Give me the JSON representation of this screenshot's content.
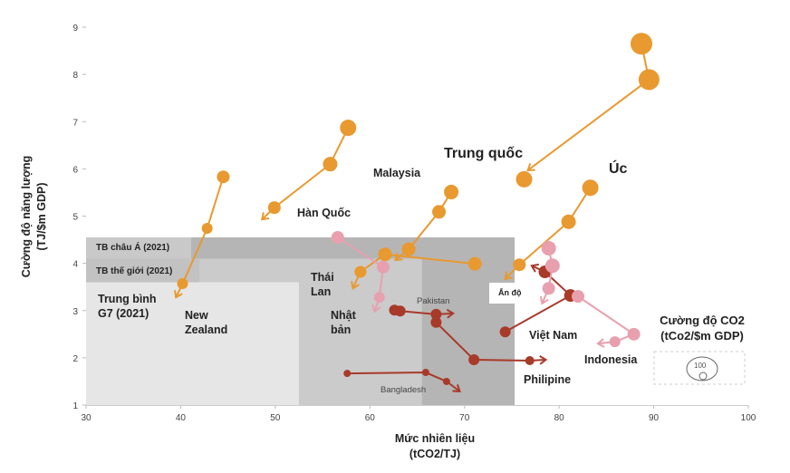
{
  "chart_data": {
    "type": "scatter",
    "title": "",
    "xlabel": "Mức nhiên liệu (tCO2/TJ)",
    "xlabel_lines": [
      "Mức nhiên liệu",
      "(tCO2/TJ)"
    ],
    "ylabel": "Cường độ năng lượng (TJ/$m GDP)",
    "ylabel_lines": [
      "Cường độ năng lượng",
      "(TJ/$m GDP)"
    ],
    "xlim": [
      30,
      100
    ],
    "ylim": [
      1,
      9
    ],
    "xticks": [
      30,
      40,
      50,
      60,
      70,
      80,
      90,
      100
    ],
    "yticks": [
      1,
      2,
      3,
      4,
      5,
      6,
      7,
      8,
      9
    ],
    "grid": false,
    "regions": [
      {
        "name": "TB châu Á (2021)",
        "x": [
          30,
          75.3
        ],
        "y": [
          1,
          4.55
        ],
        "color": "#b5b5b5"
      },
      {
        "name": "TB thế giới (2021)",
        "x": [
          30,
          65.5
        ],
        "y": [
          1,
          4.1
        ],
        "color": "#cbcbcb"
      },
      {
        "name": "Trung bình G7 (2021)",
        "x": [
          30,
          52.5
        ],
        "y": [
          1,
          3.6
        ],
        "color": "#e6e6e6"
      }
    ],
    "region_labels": [
      "TB châu Á (2021)",
      "TB thế giới (2021)",
      "Trung bình G7 (2021)"
    ],
    "series": [
      {
        "name": "Trung quốc",
        "color": "#e8992f",
        "points": [
          [
            88.7,
            8.65,
            12
          ],
          [
            89.5,
            7.89,
            11.5
          ]
        ],
        "arrow": [
          76.7,
          5.97
        ]
      },
      {
        "name": "Trung quốc (2021)",
        "color": "#e8992f",
        "points": [
          [
            76.3,
            5.78,
            9
          ]
        ],
        "arrow": null
      },
      {
        "name": "Úc",
        "color": "#e8992f",
        "points": [
          [
            83.3,
            5.6,
            9
          ],
          [
            81.0,
            4.88,
            8
          ],
          [
            75.8,
            3.97,
            7
          ]
        ],
        "arrow": [
          74.3,
          3.67
        ]
      },
      {
        "name": "Malaysia",
        "color": "#e8992f",
        "points": [
          [
            68.6,
            5.51,
            8
          ],
          [
            67.3,
            5.09,
            7.5
          ],
          [
            64.1,
            4.3,
            7.5
          ]
        ],
        "arrow": [
          62.7,
          4.07
        ]
      },
      {
        "name": "Ấn độ",
        "color": "#e8992f",
        "points": [
          [
            71.1,
            3.99,
            7.5
          ],
          [
            61.6,
            4.19,
            7.5
          ],
          [
            59.0,
            3.82,
            6.5
          ]
        ],
        "arrow": [
          58.2,
          3.47
        ]
      },
      {
        "name": "Hàn Quốc",
        "color": "#e8992f",
        "points": [
          [
            57.7,
            6.87,
            9
          ],
          [
            55.8,
            6.1,
            8
          ],
          [
            49.9,
            5.18,
            7
          ]
        ],
        "arrow": [
          48.6,
          4.93
        ]
      },
      {
        "name": "New Zealand",
        "color": "#e8992f",
        "points": [
          [
            44.5,
            5.83,
            7
          ],
          [
            42.8,
            4.74,
            6
          ],
          [
            40.2,
            3.57,
            6
          ]
        ],
        "arrow": [
          39.5,
          3.28
        ]
      },
      {
        "name": "Nhật bản",
        "color": "#e8a0ae",
        "points": [
          [
            56.6,
            4.55,
            7
          ],
          [
            61.4,
            3.92,
            7
          ],
          [
            61.0,
            3.28,
            6
          ]
        ],
        "arrow": [
          60.5,
          2.98
        ]
      },
      {
        "name": "Pakistan",
        "color": "#a83a2a",
        "points": [
          [
            62.6,
            3.01,
            6
          ],
          [
            63.2,
            2.99,
            6
          ],
          [
            67.0,
            2.92,
            6
          ]
        ],
        "arrow": [
          68.8,
          2.94
        ]
      },
      {
        "name": "Philipine",
        "color": "#a83a2a",
        "points": [
          [
            67.0,
            2.75,
            6
          ],
          [
            71.0,
            1.96,
            6
          ],
          [
            76.9,
            1.94,
            5
          ]
        ],
        "arrow": [
          78.6,
          1.96
        ]
      },
      {
        "name": "Bangladesh",
        "color": "#a83a2a",
        "points": [
          [
            57.6,
            1.67,
            4
          ],
          [
            65.9,
            1.69,
            4
          ],
          [
            68.1,
            1.5,
            4
          ]
        ],
        "arrow": [
          69.5,
          1.29
        ]
      },
      {
        "name": "Việt Nam",
        "color": "#a83a2a",
        "points": [
          [
            74.3,
            2.55,
            6
          ],
          [
            81.2,
            3.32,
            7
          ],
          [
            78.5,
            3.82,
            7
          ]
        ],
        "arrow": [
          77.1,
          3.95
        ]
      },
      {
        "name": "Thái Lan",
        "color": "#e8a0ae",
        "points": [
          [
            78.9,
            4.32,
            8
          ],
          [
            79.3,
            3.95,
            8
          ],
          [
            78.9,
            3.47,
            7
          ]
        ],
        "arrow": [
          78.2,
          3.15
        ]
      },
      {
        "name": "Indonesia",
        "color": "#e8a0ae",
        "points": [
          [
            82.0,
            3.3,
            7
          ],
          [
            87.9,
            2.5,
            7
          ],
          [
            85.9,
            2.34,
            6
          ]
        ],
        "arrow": [
          84.1,
          2.3
        ]
      }
    ],
    "annotations": {
      "trung_quoc": "Trung quốc",
      "uc": "Úc",
      "malaysia": "Malaysia",
      "han_quoc": "Hàn Quốc",
      "thai_lan": [
        "Thái",
        "Lan"
      ],
      "nhat_ban": [
        "Nhật",
        "bản"
      ],
      "new_zealand": [
        "New",
        "Zealand"
      ],
      "g7": [
        "Trung bình",
        "G7 (2021)"
      ],
      "tb_chau_a": "TB châu Á (2021)",
      "tb_the_gioi": "TB thế giới (2021)",
      "pakistan": "Pakistan",
      "bangladesh": "Bangladesh",
      "an_do": "Ấn độ",
      "viet_nam": "Việt Nam",
      "indonesia": "Indonesia",
      "philipine": "Philipine"
    },
    "legend": {
      "title_lines": [
        "Cường độ CO2",
        "(tCo2/$m GDP)"
      ],
      "value": "100",
      "placement": "bottom-right"
    }
  }
}
